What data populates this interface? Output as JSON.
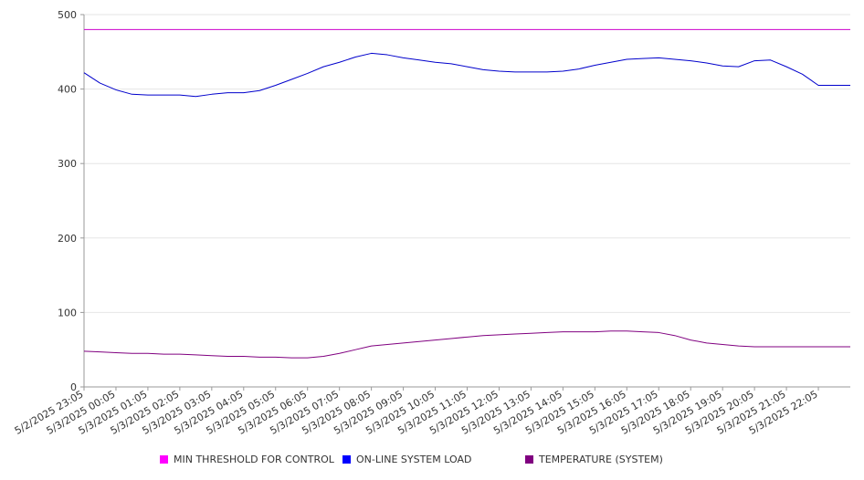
{
  "chart_data": {
    "type": "line",
    "title": "",
    "xlabel": "",
    "ylabel": "",
    "ylim": [
      0,
      500
    ],
    "y_ticks": [
      0,
      100,
      200,
      300,
      400,
      500
    ],
    "x_tick_labels": [
      "5/2/2025 23:05",
      "5/3/2025 00:05",
      "5/3/2025 01:05",
      "5/3/2025 02:05",
      "5/3/2025 03:05",
      "5/3/2025 04:05",
      "5/3/2025 05:05",
      "5/3/2025 06:05",
      "5/3/2025 07:05",
      "5/3/2025 08:05",
      "5/3/2025 09:05",
      "5/3/2025 10:05",
      "5/3/2025 11:05",
      "5/3/2025 12:05",
      "5/3/2025 13:05",
      "5/3/2025 14:05",
      "5/3/2025 15:05",
      "5/3/2025 16:05",
      "5/3/2025 17:05",
      "5/3/2025 18:05",
      "5/3/2025 19:05",
      "5/3/2025 20:05",
      "5/3/2025 21:05",
      "5/3/2025 22:05"
    ],
    "grid": true,
    "legend_position": "bottom",
    "x": [
      "5/2/2025 23:05",
      "5/2/2025 23:35",
      "5/3/2025 00:05",
      "5/3/2025 00:35",
      "5/3/2025 01:05",
      "5/3/2025 01:35",
      "5/3/2025 02:05",
      "5/3/2025 02:35",
      "5/3/2025 03:05",
      "5/3/2025 03:35",
      "5/3/2025 04:05",
      "5/3/2025 04:35",
      "5/3/2025 05:05",
      "5/3/2025 05:35",
      "5/3/2025 06:05",
      "5/3/2025 06:35",
      "5/3/2025 07:05",
      "5/3/2025 07:35",
      "5/3/2025 08:05",
      "5/3/2025 08:35",
      "5/3/2025 09:05",
      "5/3/2025 09:35",
      "5/3/2025 10:05",
      "5/3/2025 10:35",
      "5/3/2025 11:05",
      "5/3/2025 11:35",
      "5/3/2025 12:05",
      "5/3/2025 12:35",
      "5/3/2025 13:05",
      "5/3/2025 13:35",
      "5/3/2025 14:05",
      "5/3/2025 14:35",
      "5/3/2025 15:05",
      "5/3/2025 15:35",
      "5/3/2025 16:05",
      "5/3/2025 16:35",
      "5/3/2025 17:05",
      "5/3/2025 17:35",
      "5/3/2025 18:05",
      "5/3/2025 18:35",
      "5/3/2025 19:05",
      "5/3/2025 19:35",
      "5/3/2025 20:05",
      "5/3/2025 20:35",
      "5/3/2025 21:05",
      "5/3/2025 21:35",
      "5/3/2025 22:05",
      "5/3/2025 22:35",
      "5/3/2025 23:05"
    ],
    "series": [
      {
        "name": "MIN THRESHOLD FOR CONTROL",
        "color": "#cc00cc",
        "values": [
          480,
          480,
          480,
          480,
          480,
          480,
          480,
          480,
          480,
          480,
          480,
          480,
          480,
          480,
          480,
          480,
          480,
          480,
          480,
          480,
          480,
          480,
          480,
          480,
          480,
          480,
          480,
          480,
          480,
          480,
          480,
          480,
          480,
          480,
          480,
          480,
          480,
          480,
          480,
          480,
          480,
          480,
          480,
          480,
          480,
          480,
          480,
          480,
          480
        ]
      },
      {
        "name": "ON-LINE SYSTEM LOAD",
        "color": "#0000cc",
        "values": [
          422,
          408,
          399,
          393,
          392,
          392,
          392,
          390,
          393,
          395,
          395,
          398,
          405,
          413,
          421,
          430,
          436,
          443,
          448,
          446,
          442,
          439,
          436,
          434,
          430,
          426,
          424,
          423,
          423,
          423,
          424,
          427,
          432,
          436,
          440,
          441,
          442,
          440,
          438,
          435,
          431,
          430,
          438,
          439,
          430,
          420,
          405,
          405,
          405
        ]
      },
      {
        "name": "TEMPERATURE (SYSTEM)",
        "color": "#800080",
        "values": [
          48,
          47,
          46,
          45,
          45,
          44,
          44,
          43,
          42,
          41,
          41,
          40,
          40,
          39,
          39,
          41,
          45,
          50,
          55,
          57,
          59,
          61,
          63,
          65,
          67,
          69,
          70,
          71,
          72,
          73,
          74,
          74,
          74,
          75,
          75,
          74,
          73,
          69,
          63,
          59,
          57,
          55,
          54,
          54,
          54,
          54,
          54,
          54,
          54
        ]
      }
    ]
  }
}
